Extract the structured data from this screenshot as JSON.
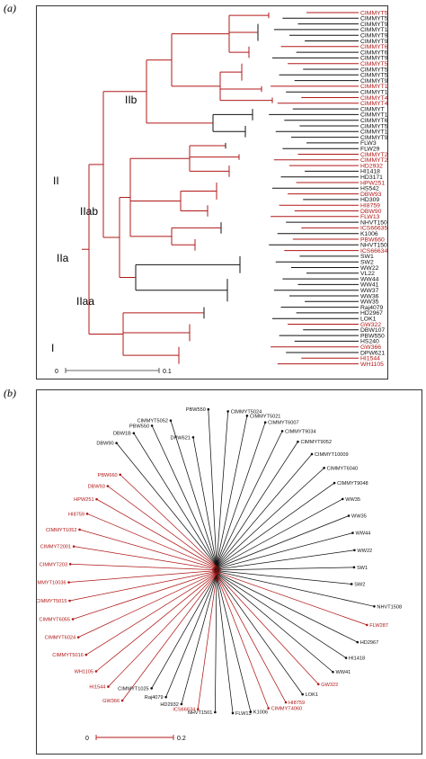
{
  "panel_a": {
    "tag": "(a)",
    "clades": {
      "IIb": "IIb",
      "II": "II",
      "IIab": "IIab",
      "IIa": "IIa",
      "IIaa": "IIaa",
      "I": "I"
    },
    "scale": {
      "start": "0",
      "end": "0.1"
    },
    "colors": {
      "red": "#b01818",
      "black": "#111111"
    },
    "leaves": [
      {
        "name": "CIMMYT5016",
        "red": true
      },
      {
        "name": "CIMMYT5024",
        "red": false
      },
      {
        "name": "CIMMYT9052",
        "red": false
      },
      {
        "name": "CIMMYT10008",
        "red": false
      },
      {
        "name": "CIMMYT9034",
        "red": false
      },
      {
        "name": "CIMMYT9015",
        "red": false
      },
      {
        "name": "CIMMYT6024",
        "red": true
      },
      {
        "name": "CIMMYT6007",
        "red": false
      },
      {
        "name": "CIMMYT9055",
        "red": false
      },
      {
        "name": "CIMMYT5018",
        "red": true
      },
      {
        "name": "CIMMYT5021",
        "red": false
      },
      {
        "name": "CIMMYT5019",
        "red": false
      },
      {
        "name": "CIMMYT9048",
        "red": false
      },
      {
        "name": "CIMMYT10036",
        "red": true
      },
      {
        "name": "CIMMYT10009",
        "red": false
      },
      {
        "name": "CIMMYT4060",
        "red": true
      },
      {
        "name": "CIMMYT4047",
        "red": true
      },
      {
        "name": "CIMMYT",
        "red": false
      },
      {
        "name": "CIMMYT1052",
        "red": false
      },
      {
        "name": "CIMMYT6052",
        "red": false
      },
      {
        "name": "CIMMYT5025",
        "red": false
      },
      {
        "name": "CIMMYT1048",
        "red": false
      },
      {
        "name": "CIMMYT9018",
        "red": false
      },
      {
        "name": "FLW3",
        "red": false
      },
      {
        "name": "FLW29",
        "red": false
      },
      {
        "name": "CIMMYT2001",
        "red": true
      },
      {
        "name": "CIMMYT203",
        "red": true
      },
      {
        "name": "HD2932",
        "red": true
      },
      {
        "name": "HI1418",
        "red": false
      },
      {
        "name": "HD3171",
        "red": false
      },
      {
        "name": "HPW251",
        "red": true
      },
      {
        "name": "HS542",
        "red": false
      },
      {
        "name": "DBW93",
        "red": true
      },
      {
        "name": "HD309",
        "red": false
      },
      {
        "name": "HI8759",
        "red": true
      },
      {
        "name": "DBW90",
        "red": true
      },
      {
        "name": "FLW13",
        "red": true
      },
      {
        "name": "NHVT1508",
        "red": false
      },
      {
        "name": "ICS66635",
        "red": true
      },
      {
        "name": "K1006",
        "red": false
      },
      {
        "name": "PBW660",
        "red": true
      },
      {
        "name": "NHVT1501",
        "red": false
      },
      {
        "name": "ICS66634",
        "red": true
      },
      {
        "name": "SW1",
        "red": false
      },
      {
        "name": "SW2",
        "red": false
      },
      {
        "name": "WW22",
        "red": false
      },
      {
        "name": "VL22",
        "red": false
      },
      {
        "name": "WW44",
        "red": false
      },
      {
        "name": "WW41",
        "red": false
      },
      {
        "name": "WW37",
        "red": false
      },
      {
        "name": "WW36",
        "red": false
      },
      {
        "name": "WW35",
        "red": false
      },
      {
        "name": "Raj4079",
        "red": false
      },
      {
        "name": "HD2967",
        "red": false
      },
      {
        "name": "LOK1",
        "red": false
      },
      {
        "name": "GW322",
        "red": true
      },
      {
        "name": "DBW107",
        "red": false
      },
      {
        "name": "PBW550",
        "red": false
      },
      {
        "name": "HS240",
        "red": false
      },
      {
        "name": "GW366",
        "red": true
      },
      {
        "name": "DPW621",
        "red": false
      },
      {
        "name": "HI1544",
        "red": true
      },
      {
        "name": "WH1105",
        "red": true
      }
    ]
  },
  "panel_b": {
    "tag": "(b)",
    "scale": {
      "start": "0",
      "end": "0.2"
    },
    "labels": [
      {
        "name": "DPW621",
        "red": false
      },
      {
        "name": "PBW550",
        "red": false
      },
      {
        "name": "CIMMYT5024",
        "red": false
      },
      {
        "name": "CIMMYT5021",
        "red": false
      },
      {
        "name": "CIMMYT6007",
        "red": false
      },
      {
        "name": "CIMMYT9034",
        "red": false
      },
      {
        "name": "CIMMYT9052",
        "red": false
      },
      {
        "name": "CIMMYT10009",
        "red": false
      },
      {
        "name": "CIMMYT6040",
        "red": false
      },
      {
        "name": "CIMMYT9048",
        "red": false
      },
      {
        "name": "WW35",
        "red": false
      },
      {
        "name": "WW35",
        "red": false
      },
      {
        "name": "WW44",
        "red": false
      },
      {
        "name": "WW22",
        "red": false
      },
      {
        "name": "SW1",
        "red": false
      },
      {
        "name": "SW2",
        "red": false
      },
      {
        "name": "NHVT1508",
        "red": false
      },
      {
        "name": "FLW287",
        "red": true
      },
      {
        "name": "HD2967",
        "red": false
      },
      {
        "name": "HI1418",
        "red": false
      },
      {
        "name": "WW41",
        "red": false
      },
      {
        "name": "GW322",
        "red": true
      },
      {
        "name": "LOK1",
        "red": false
      },
      {
        "name": "HI8759",
        "red": true
      },
      {
        "name": "CIMMYT4060",
        "red": true
      },
      {
        "name": "K1006",
        "red": false
      },
      {
        "name": "FLW13",
        "red": false
      },
      {
        "name": "NHVT1501",
        "red": false
      },
      {
        "name": "ICS66634",
        "red": true
      },
      {
        "name": "HD2932",
        "red": false
      },
      {
        "name": "Raj4079",
        "red": false
      },
      {
        "name": "CIMMYT1025",
        "red": false
      },
      {
        "name": "GW366",
        "red": true
      },
      {
        "name": "HI1544",
        "red": true
      },
      {
        "name": "WH1105",
        "red": true
      },
      {
        "name": "CIMMYT5016",
        "red": true
      },
      {
        "name": "CIMMYT6024",
        "red": true
      },
      {
        "name": "CIMMYT6055",
        "red": true
      },
      {
        "name": "CIMMYT5015",
        "red": true
      },
      {
        "name": "CIMMYT10036",
        "red": true
      },
      {
        "name": "CIMMYT203",
        "red": true
      },
      {
        "name": "CIMMYT2001",
        "red": true
      },
      {
        "name": "CIMMYT1052",
        "red": true
      },
      {
        "name": "HI8759",
        "red": true
      },
      {
        "name": "HPW251",
        "red": true
      },
      {
        "name": "DBW93",
        "red": true
      },
      {
        "name": "PBW660",
        "red": true
      },
      {
        "name": "DBW90",
        "red": false
      },
      {
        "name": "DBW1B",
        "red": false
      },
      {
        "name": "PBW550",
        "red": false
      },
      {
        "name": "CIMMYT5052",
        "red": false
      }
    ]
  }
}
